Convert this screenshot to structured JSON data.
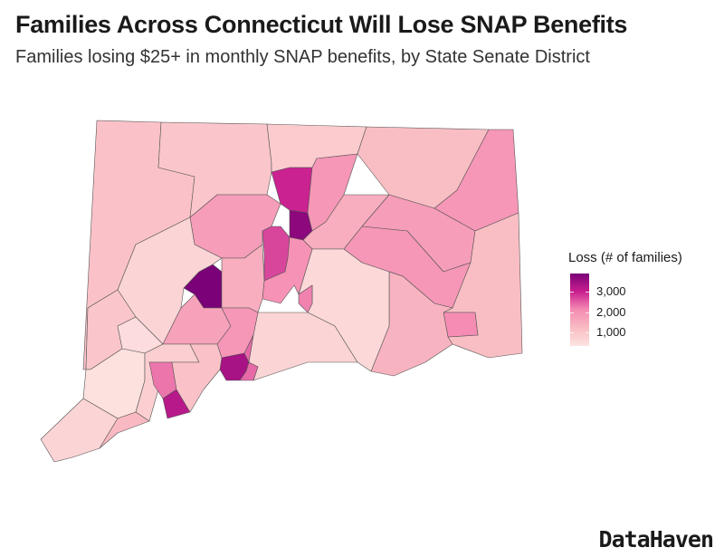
{
  "header": {
    "title": "Families Across Connecticut Will Lose SNAP Benefits",
    "subtitle": "Families losing $25+ in monthly SNAP benefits, by State Senate District"
  },
  "map": {
    "region": "Connecticut",
    "unit": "State Senate District",
    "border_color": "#555555",
    "regions": [
      {
        "value": 1100
      },
      {
        "value": 1000
      },
      {
        "value": 900
      },
      {
        "value": 1200
      },
      {
        "value": 1900
      },
      {
        "value": 3000
      },
      {
        "value": 3700
      },
      {
        "value": 1900
      },
      {
        "value": 1500
      },
      {
        "value": 1800
      },
      {
        "value": 1900
      },
      {
        "value": 1200
      },
      {
        "value": 2100
      },
      {
        "value": 1400
      },
      {
        "value": 600
      },
      {
        "value": 700
      },
      {
        "value": 1800
      },
      {
        "value": 2700
      },
      {
        "value": 2000
      },
      {
        "value": 2200
      },
      {
        "value": 3900
      },
      {
        "value": 700
      },
      {
        "value": 1500
      },
      {
        "value": 1700
      },
      {
        "value": 1900
      },
      {
        "value": 3400
      },
      {
        "value": 2400
      },
      {
        "value": 1000
      },
      {
        "value": 500
      },
      {
        "value": 400
      },
      {
        "value": 800
      },
      {
        "value": 2300
      },
      {
        "value": 3200
      },
      {
        "value": 1100
      },
      {
        "value": 700
      },
      {
        "value": 1300
      }
    ]
  },
  "legend": {
    "title": "Loss (# of families)",
    "ticks": [
      "3,000",
      "2,000",
      "1,000"
    ],
    "tick_values": [
      3000,
      2000,
      1000
    ],
    "range": [
      350,
      3900
    ],
    "colors": [
      "#fde3e1",
      "#f9bcc3",
      "#f58bb3",
      "#c9208f",
      "#7a0177"
    ]
  },
  "branding": {
    "logo": "DataHaven"
  }
}
